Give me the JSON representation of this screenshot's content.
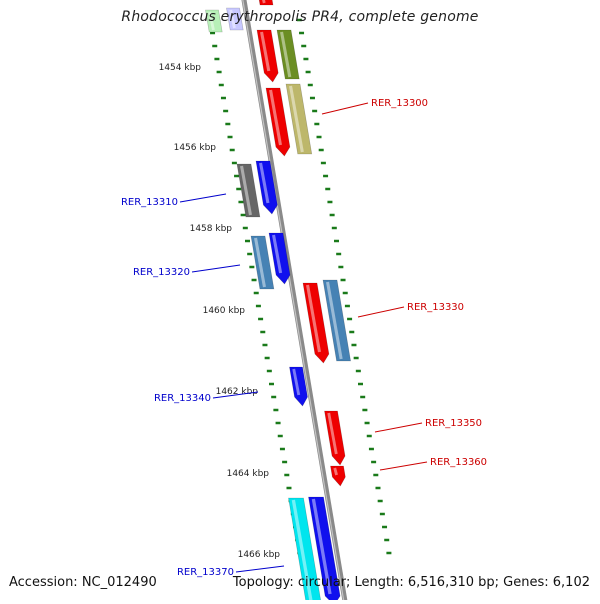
{
  "title": "Rhodococcus erythropolis PR4, complete genome",
  "footer": {
    "accession": "Accession: NC_012490",
    "topology": "Topology: circular; Length: 6,516,310 bp; Genes: 6,102"
  },
  "axis": {
    "unit": "kbp",
    "ticks": [
      {
        "label": "1454 kbp",
        "kbp": 1454
      },
      {
        "label": "1456 kbp",
        "kbp": 1456
      },
      {
        "label": "1458 kbp",
        "kbp": 1458
      },
      {
        "label": "1460 kbp",
        "kbp": 1460
      },
      {
        "label": "1462 kbp",
        "kbp": 1462
      },
      {
        "label": "1464 kbp",
        "kbp": 1464
      },
      {
        "label": "1466 kbp",
        "kbp": 1466
      }
    ]
  },
  "colors": {
    "red": "#ee0000",
    "blue": "#1010ee",
    "olive": "#6b8e23",
    "khaki": "#bdb76b",
    "grey": "#666666",
    "steelblue": "#4682b4",
    "cyan": "#00e5ee",
    "palegreen": "#b8f0b8",
    "lavender": "#c8c8ff",
    "backbone": "#8a8a8a",
    "dots": "#1a7a1a",
    "label_red": "#cc0000",
    "label_blue": "#0000cc"
  },
  "labels": [
    {
      "text": "RER_13300",
      "side": "right"
    },
    {
      "text": "RER_13310",
      "side": "left"
    },
    {
      "text": "RER_13320",
      "side": "left"
    },
    {
      "text": "RER_13330",
      "side": "right"
    },
    {
      "text": "RER_13340",
      "side": "left"
    },
    {
      "text": "RER_13350",
      "side": "right"
    },
    {
      "text": "RER_13360",
      "side": "right"
    },
    {
      "text": "RER_13370",
      "side": "left"
    }
  ]
}
